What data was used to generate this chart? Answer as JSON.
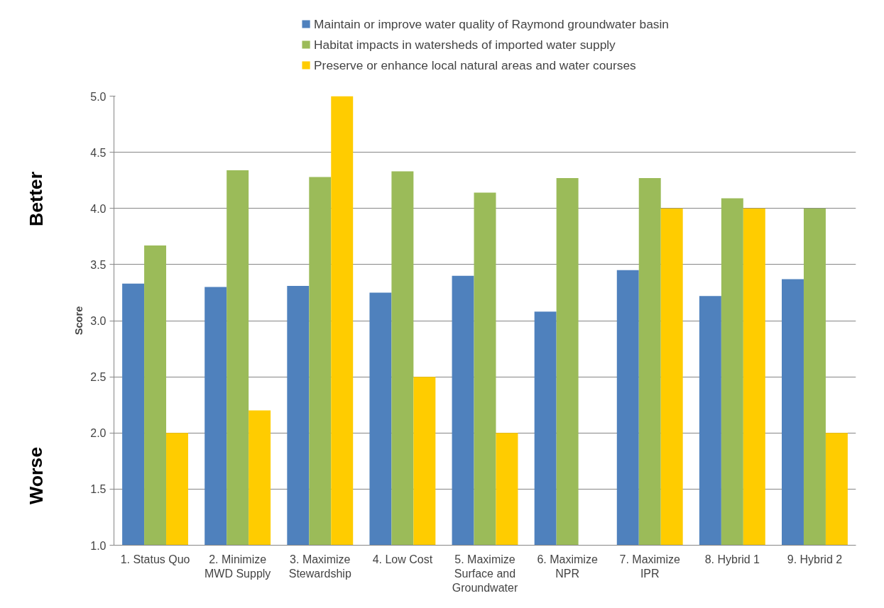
{
  "chart_data": {
    "type": "bar",
    "ylabel": "Score",
    "categories": [
      "1. Status Quo",
      "2. Minimize MWD Supply",
      "3. Maximize Stewardship",
      "4. Low Cost",
      "5. Maximize Surface and Groundwater",
      "6. Maximize NPR",
      "7. Maximize IPR",
      "8. Hybrid 1",
      "9. Hybrid 2"
    ],
    "series": [
      {
        "name": "Maintain or improve water quality of Raymond groundwater basin",
        "color": "#4f81bd",
        "values": [
          3.33,
          3.3,
          3.31,
          3.25,
          3.4,
          3.08,
          3.45,
          3.22,
          3.37
        ]
      },
      {
        "name": "Habitat impacts in watersheds of imported water supply",
        "color": "#9bbb59",
        "values": [
          3.67,
          4.34,
          4.28,
          4.33,
          4.14,
          4.27,
          4.27,
          4.09,
          4.0
        ]
      },
      {
        "name": "Preserve or enhance local natural areas and water courses",
        "color": "#ffcc00",
        "values": [
          2.0,
          2.2,
          5.0,
          2.5,
          2.0,
          null,
          4.0,
          4.0,
          2.0
        ]
      }
    ],
    "ylim": [
      1.0,
      5.0
    ],
    "yticks": [
      {
        "value": 1,
        "label": "1.0"
      },
      1.5,
      {
        "value": 2,
        "label": "2.0"
      },
      2.5,
      {
        "value": 3,
        "label": "3.0"
      },
      3.5,
      {
        "value": 4,
        "label": "4.0"
      },
      4.5,
      {
        "value": 5,
        "label": "5.0"
      }
    ],
    "grid": "y",
    "legend": "top",
    "annotations": [
      "Better",
      "Worse"
    ]
  }
}
